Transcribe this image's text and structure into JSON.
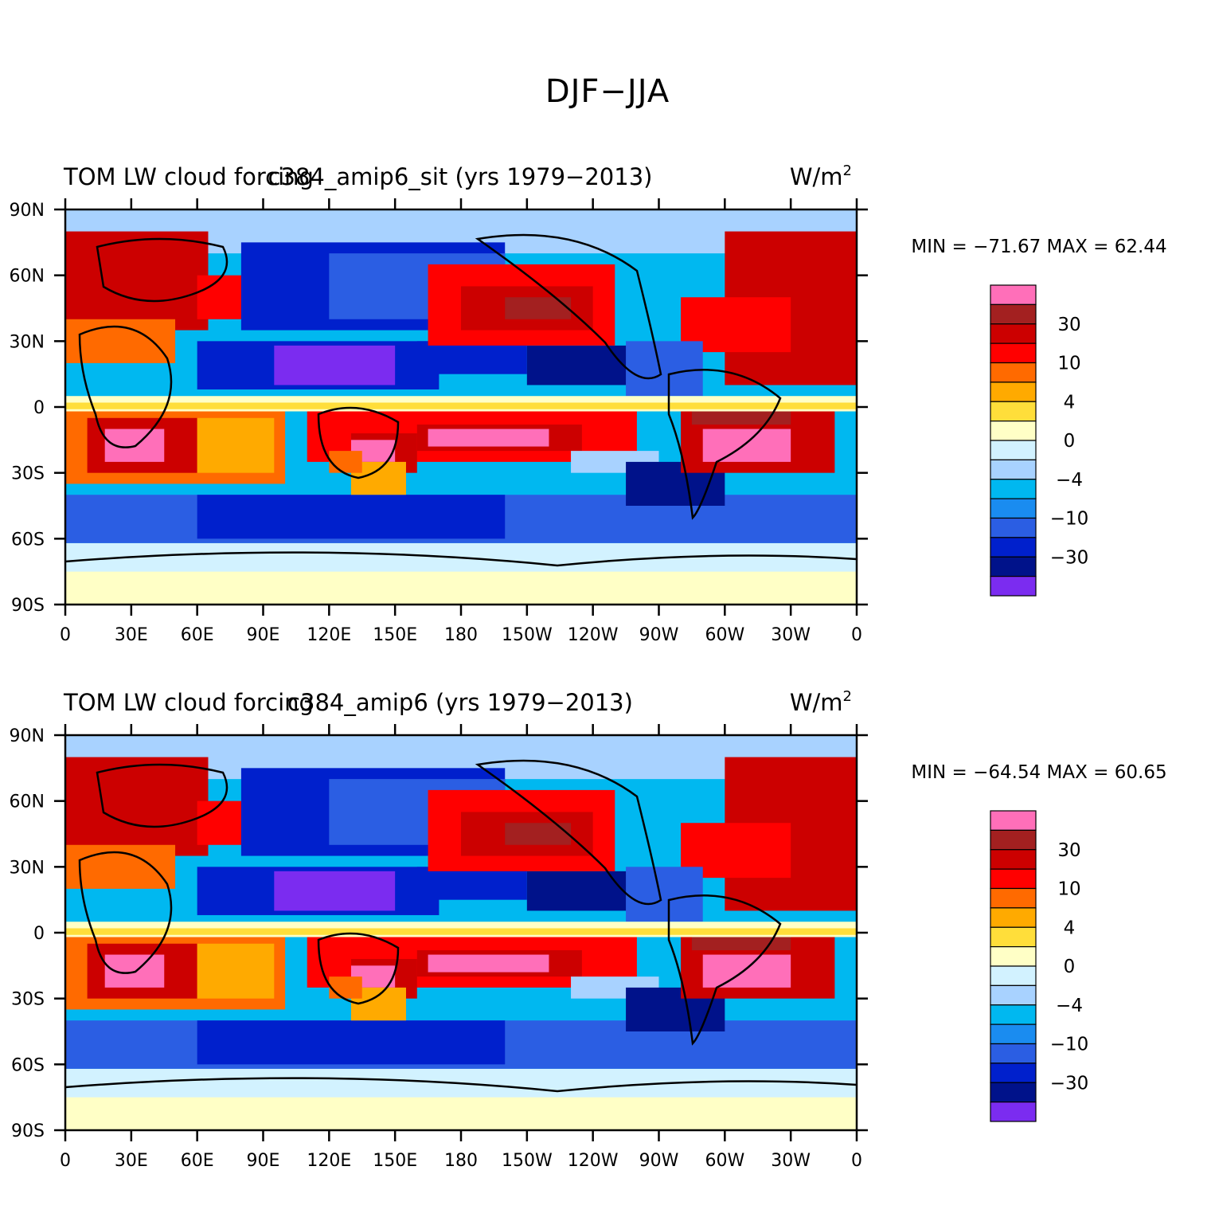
{
  "title": "DJF−JJA",
  "colors": {
    "frame": "#000000",
    "levels": [
      "#7b2cf0",
      "#00128a",
      "#0020cc",
      "#2b5ee3",
      "#1a8cf0",
      "#00b8f0",
      "#a8d2ff",
      "#d2f2ff",
      "#ffffc6",
      "#ffde3a",
      "#ffaa00",
      "#ff6a00",
      "#ff0000",
      "#cc0000",
      "#a32020",
      "#ff6fb9"
    ]
  },
  "colorbar_labels": [
    "30",
    "10",
    "4",
    "0",
    "−4",
    "−10",
    "−30"
  ],
  "lat_ticks": [
    "90N",
    "60N",
    "30N",
    "0",
    "30S",
    "60S",
    "90S"
  ],
  "lon_ticks": [
    "0",
    "30E",
    "60E",
    "90E",
    "120E",
    "150E",
    "180",
    "150W",
    "120W",
    "90W",
    "60W",
    "30W",
    "0"
  ],
  "units": "W/m",
  "units_sup": "2",
  "panels": [
    {
      "left_title": "TOM LW cloud forcing",
      "center_title": "c384_amip6_sit (yrs 1979−2013)",
      "stats": "MIN = −71.67  MAX =   62.44"
    },
    {
      "left_title": "TOM LW cloud forcing",
      "center_title": "c384_amip6 (yrs 1979−2013)",
      "stats": "MIN = −64.54  MAX =   60.65"
    }
  ]
}
